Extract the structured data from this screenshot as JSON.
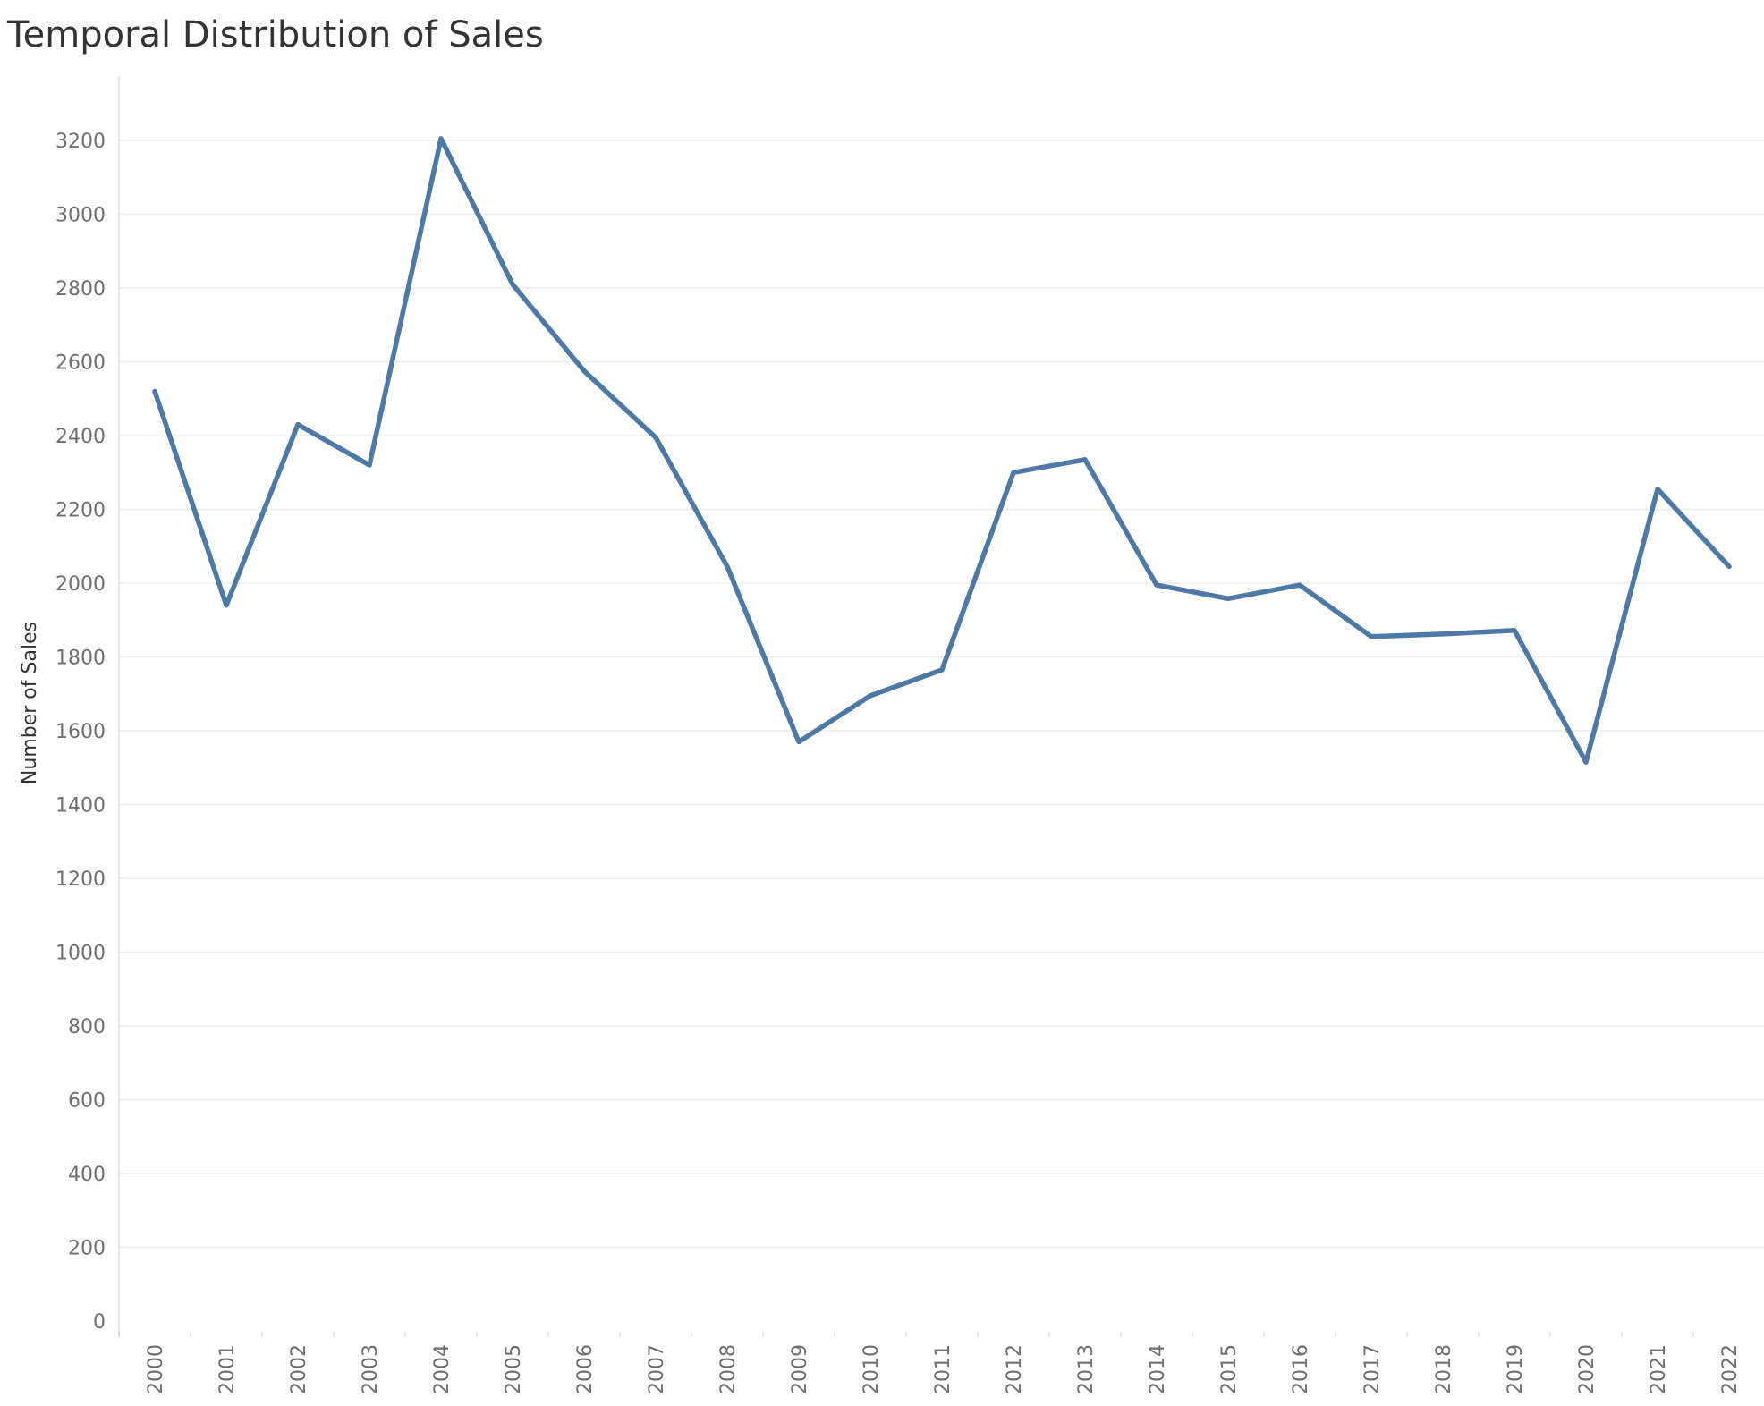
{
  "chart_data": {
    "type": "line",
    "title": "Temporal Distribution of Sales",
    "xlabel": "",
    "ylabel": "Number of Sales",
    "x": [
      2000,
      2001,
      2002,
      2003,
      2004,
      2005,
      2006,
      2007,
      2008,
      2009,
      2010,
      2011,
      2012,
      2013,
      2014,
      2015,
      2016,
      2017,
      2018,
      2019,
      2020,
      2021,
      2022
    ],
    "series": [
      {
        "values": [
          2520,
          1940,
          2430,
          2320,
          3205,
          2810,
          2575,
          2395,
          2045,
          1570,
          1695,
          1765,
          2300,
          2335,
          1995,
          1958,
          1995,
          1855,
          1862,
          1872,
          1515,
          2255,
          2045
        ],
        "color": "#4e79a7"
      }
    ],
    "yticks": [
      0,
      200,
      400,
      600,
      800,
      1000,
      1200,
      1400,
      1600,
      1800,
      2000,
      2200,
      2400,
      2600,
      2800,
      3000,
      3200
    ],
    "ylim": [
      0,
      3200
    ],
    "grid": true,
    "legend": "none"
  }
}
